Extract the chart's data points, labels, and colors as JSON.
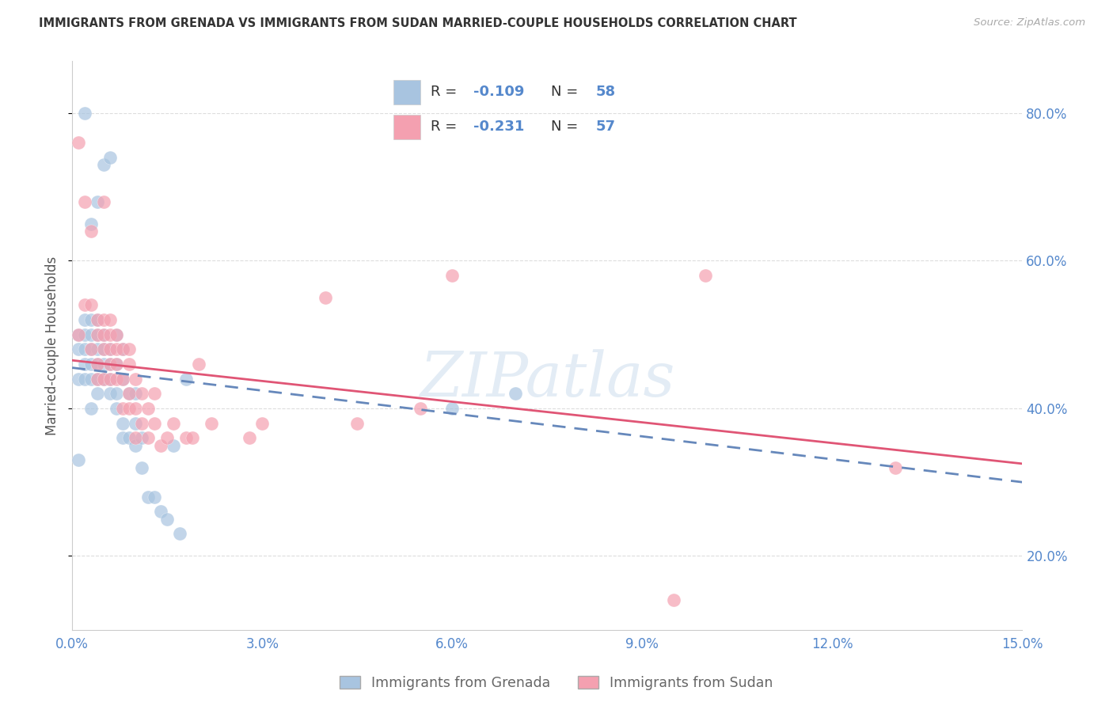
{
  "title": "IMMIGRANTS FROM GRENADA VS IMMIGRANTS FROM SUDAN MARRIED-COUPLE HOUSEHOLDS CORRELATION CHART",
  "source": "Source: ZipAtlas.com",
  "ylabel": "Married-couple Households",
  "xlim": [
    0.0,
    0.15
  ],
  "ylim": [
    0.1,
    0.87
  ],
  "yticks": [
    0.2,
    0.4,
    0.6,
    0.8
  ],
  "xticks": [
    0.0,
    0.03,
    0.06,
    0.09,
    0.12,
    0.15
  ],
  "grenada_color": "#a8c4e0",
  "sudan_color": "#f4a0b0",
  "grenada_R": -0.109,
  "grenada_N": 58,
  "sudan_R": -0.231,
  "sudan_N": 57,
  "axis_color": "#5588cc",
  "grid_color": "#dddddd",
  "watermark": "ZIPatlas",
  "grenada_scatter_x": [
    0.001,
    0.001,
    0.001,
    0.001,
    0.002,
    0.002,
    0.002,
    0.002,
    0.002,
    0.002,
    0.003,
    0.003,
    0.003,
    0.003,
    0.003,
    0.003,
    0.003,
    0.004,
    0.004,
    0.004,
    0.004,
    0.004,
    0.004,
    0.004,
    0.005,
    0.005,
    0.005,
    0.005,
    0.005,
    0.006,
    0.006,
    0.006,
    0.006,
    0.006,
    0.007,
    0.007,
    0.007,
    0.007,
    0.008,
    0.008,
    0.008,
    0.008,
    0.009,
    0.009,
    0.01,
    0.01,
    0.01,
    0.011,
    0.011,
    0.012,
    0.013,
    0.014,
    0.015,
    0.016,
    0.017,
    0.018,
    0.06,
    0.07
  ],
  "grenada_scatter_y": [
    0.33,
    0.44,
    0.48,
    0.5,
    0.44,
    0.46,
    0.48,
    0.5,
    0.52,
    0.8,
    0.4,
    0.44,
    0.46,
    0.48,
    0.5,
    0.52,
    0.65,
    0.42,
    0.44,
    0.46,
    0.48,
    0.5,
    0.52,
    0.68,
    0.44,
    0.46,
    0.48,
    0.5,
    0.73,
    0.42,
    0.44,
    0.46,
    0.48,
    0.74,
    0.4,
    0.42,
    0.46,
    0.5,
    0.36,
    0.38,
    0.44,
    0.48,
    0.36,
    0.42,
    0.35,
    0.38,
    0.42,
    0.32,
    0.36,
    0.28,
    0.28,
    0.26,
    0.25,
    0.35,
    0.23,
    0.44,
    0.4,
    0.42
  ],
  "sudan_scatter_x": [
    0.001,
    0.001,
    0.002,
    0.002,
    0.003,
    0.003,
    0.003,
    0.004,
    0.004,
    0.004,
    0.004,
    0.005,
    0.005,
    0.005,
    0.005,
    0.005,
    0.006,
    0.006,
    0.006,
    0.006,
    0.006,
    0.007,
    0.007,
    0.007,
    0.007,
    0.008,
    0.008,
    0.008,
    0.009,
    0.009,
    0.009,
    0.009,
    0.01,
    0.01,
    0.01,
    0.011,
    0.011,
    0.012,
    0.012,
    0.013,
    0.013,
    0.014,
    0.015,
    0.016,
    0.018,
    0.019,
    0.02,
    0.022,
    0.028,
    0.03,
    0.04,
    0.045,
    0.055,
    0.06,
    0.095,
    0.1,
    0.13
  ],
  "sudan_scatter_y": [
    0.76,
    0.5,
    0.68,
    0.54,
    0.64,
    0.48,
    0.54,
    0.5,
    0.52,
    0.44,
    0.46,
    0.44,
    0.48,
    0.5,
    0.52,
    0.68,
    0.44,
    0.46,
    0.48,
    0.5,
    0.52,
    0.44,
    0.46,
    0.48,
    0.5,
    0.4,
    0.44,
    0.48,
    0.4,
    0.42,
    0.46,
    0.48,
    0.36,
    0.4,
    0.44,
    0.38,
    0.42,
    0.36,
    0.4,
    0.38,
    0.42,
    0.35,
    0.36,
    0.38,
    0.36,
    0.36,
    0.46,
    0.38,
    0.36,
    0.38,
    0.55,
    0.38,
    0.4,
    0.58,
    0.14,
    0.58,
    0.32
  ],
  "grenada_trend_x": [
    0.0,
    0.15
  ],
  "grenada_trend_y": [
    0.455,
    0.3
  ],
  "sudan_trend_x": [
    0.0,
    0.15
  ],
  "sudan_trend_y": [
    0.465,
    0.325
  ]
}
